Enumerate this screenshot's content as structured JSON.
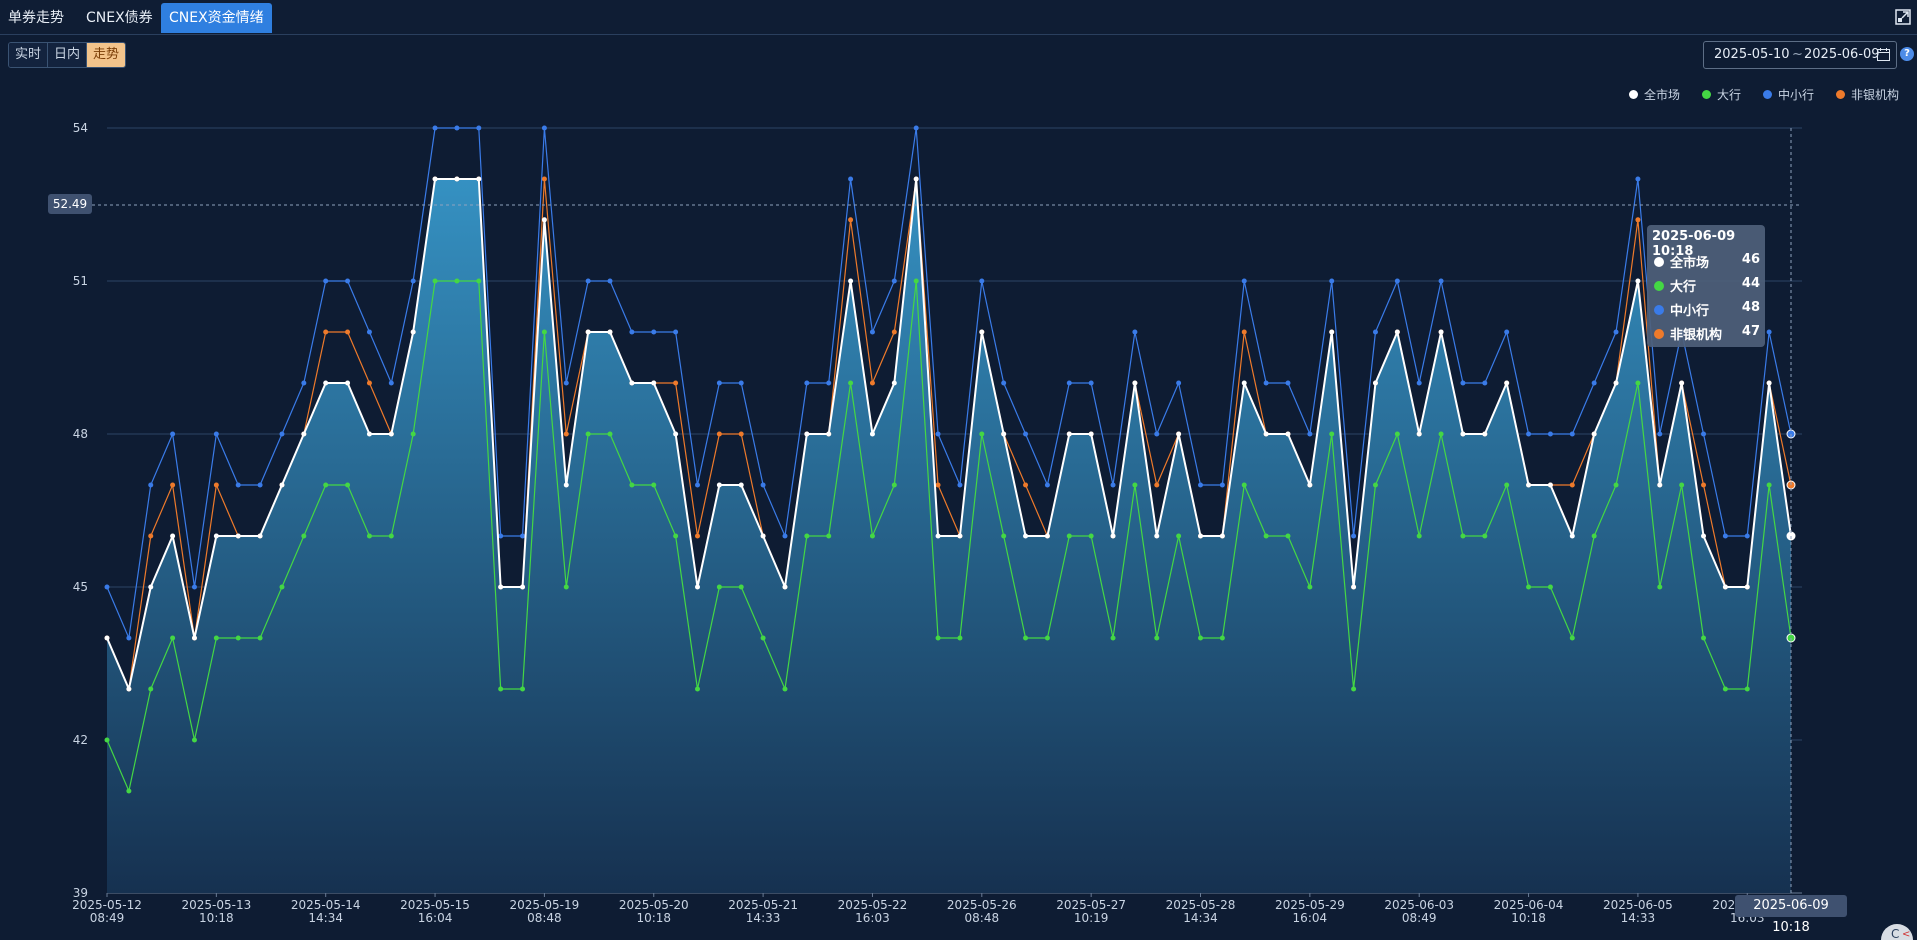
{
  "tabs": [
    {
      "label": "单券走势",
      "active": false
    },
    {
      "label": "CNEX债券",
      "active": false
    },
    {
      "label": "CNEX资金情绪",
      "active": true
    }
  ],
  "mode_buttons": [
    {
      "label": "实时",
      "active": false
    },
    {
      "label": "日内",
      "active": false
    },
    {
      "label": "走势",
      "active": true
    }
  ],
  "date_range": {
    "start": "2025-05-10",
    "separator": "~",
    "end": "2025-06-09"
  },
  "legend": [
    {
      "name": "全市场",
      "color": "#ffffff"
    },
    {
      "name": "大行",
      "color": "#44d744"
    },
    {
      "name": "中小行",
      "color": "#3a7be8"
    },
    {
      "name": "非银机构",
      "color": "#ee7a2b"
    }
  ],
  "crosshair": {
    "y_value": "52.49",
    "x_value": "2025-06-09 10:18"
  },
  "tooltip": {
    "title": "2025-06-09 10:18",
    "rows": [
      {
        "name": "全市场",
        "value": "46",
        "color": "#ffffff"
      },
      {
        "name": "大行",
        "value": "44",
        "color": "#44d744"
      },
      {
        "name": "中小行",
        "value": "48",
        "color": "#3a7be8"
      },
      {
        "name": "非银机构",
        "value": "47",
        "color": "#ee7a2b"
      }
    ]
  },
  "chart_data": {
    "type": "line",
    "ylim": [
      39,
      54
    ],
    "yticks": [
      39,
      42,
      45,
      48,
      51,
      54
    ],
    "x_tick_labels": [
      [
        "2025-05-12",
        "08:49"
      ],
      [
        "2025-05-13",
        "10:18"
      ],
      [
        "2025-05-14",
        "14:34"
      ],
      [
        "2025-05-15",
        "16:04"
      ],
      [
        "2025-05-19",
        "08:48"
      ],
      [
        "2025-05-20",
        "10:18"
      ],
      [
        "2025-05-21",
        "14:33"
      ],
      [
        "2025-05-22",
        "16:03"
      ],
      [
        "2025-05-26",
        "08:48"
      ],
      [
        "2025-05-27",
        "10:19"
      ],
      [
        "2025-05-28",
        "14:34"
      ],
      [
        "2025-05-29",
        "16:04"
      ],
      [
        "2025-06-03",
        "08:49"
      ],
      [
        "2025-06-04",
        "10:18"
      ],
      [
        "2025-06-05",
        "14:33"
      ],
      [
        "2025-06-06",
        "16:03"
      ]
    ],
    "series": [
      {
        "name": "全市场",
        "color": "#ffffff",
        "area": true,
        "values": [
          44,
          43,
          45,
          46,
          44,
          46,
          46,
          46,
          47,
          48,
          49,
          49,
          48,
          48,
          50,
          53,
          53,
          53,
          45,
          45,
          52.2,
          47,
          50,
          50,
          49,
          49,
          48,
          45,
          47,
          47,
          46,
          45,
          48,
          48,
          51,
          48,
          49,
          53,
          46,
          46,
          50,
          48,
          46,
          46,
          48,
          48,
          46,
          49,
          46,
          48,
          46,
          46,
          49,
          48,
          48,
          47,
          50,
          45,
          49,
          50,
          48,
          50,
          48,
          48,
          49,
          47,
          47,
          46,
          48,
          49,
          51,
          47,
          49,
          46,
          45,
          45,
          49,
          46
        ]
      },
      {
        "name": "大行",
        "color": "#44d744",
        "values": [
          42,
          41,
          43,
          44,
          42,
          44,
          44,
          44,
          45,
          46,
          47,
          47,
          46,
          46,
          48,
          51,
          51,
          51,
          43,
          43,
          50,
          45,
          48,
          48,
          47,
          47,
          46,
          43,
          45,
          45,
          44,
          43,
          46,
          46,
          49,
          46,
          47,
          51,
          44,
          44,
          48,
          46,
          44,
          44,
          46,
          46,
          44,
          47,
          44,
          46,
          44,
          44,
          47,
          46,
          46,
          45,
          48,
          43,
          47,
          48,
          46,
          48,
          46,
          46,
          47,
          45,
          45,
          44,
          46,
          47,
          49,
          45,
          47,
          44,
          43,
          43,
          47,
          44
        ]
      },
      {
        "name": "中小行",
        "color": "#3a7be8",
        "values": [
          45,
          44,
          47,
          48,
          45,
          48,
          47,
          47,
          48,
          49,
          51,
          51,
          50,
          49,
          51,
          54,
          54,
          54,
          46,
          46,
          54,
          49,
          51,
          51,
          50,
          50,
          50,
          47,
          49,
          49,
          47,
          46,
          49,
          49,
          53,
          50,
          51,
          54,
          48,
          47,
          51,
          49,
          48,
          47,
          49,
          49,
          47,
          50,
          48,
          49,
          47,
          47,
          51,
          49,
          49,
          48,
          51,
          46,
          50,
          51,
          49,
          51,
          49,
          49,
          50,
          48,
          48,
          48,
          49,
          50,
          53,
          48,
          50,
          48,
          46,
          46,
          50,
          48
        ]
      },
      {
        "name": "非银机构",
        "color": "#ee7a2b",
        "values": [
          44,
          43,
          46,
          47,
          44,
          47,
          46,
          46,
          47,
          48,
          50,
          50,
          49,
          48,
          50,
          53,
          53,
          53,
          45,
          45,
          53,
          48,
          50,
          50,
          49,
          49,
          49,
          46,
          48,
          48,
          46,
          45,
          48,
          48,
          52.2,
          49,
          50,
          53,
          47,
          46,
          50,
          48,
          47,
          46,
          48,
          48,
          46,
          49,
          47,
          48,
          46,
          46,
          50,
          48,
          48,
          47,
          50,
          45,
          49,
          50,
          48,
          50,
          48,
          48,
          49,
          47,
          47,
          47,
          48,
          49,
          52.2,
          47,
          49,
          47,
          45,
          45,
          49,
          47
        ]
      }
    ]
  }
}
